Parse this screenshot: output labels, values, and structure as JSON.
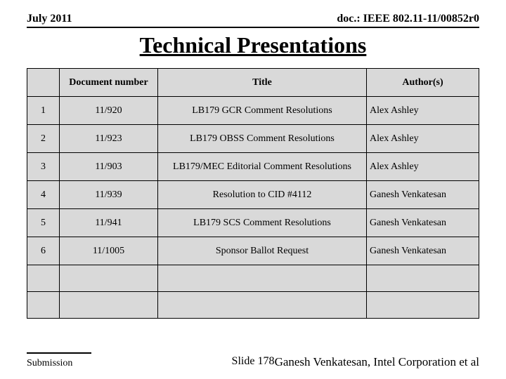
{
  "header": {
    "left": "July 2011",
    "right": "doc.: IEEE 802.11-11/00852r0"
  },
  "title": "Technical Presentations",
  "table": {
    "background_color": "#d9d9d9",
    "border_color": "#000000",
    "columns": [
      "",
      "Document number",
      "Title",
      "Author(s)"
    ],
    "rows": [
      {
        "idx": "1",
        "doc": "11/920",
        "title": "LB179 GCR Comment Resolutions",
        "author": "Alex Ashley"
      },
      {
        "idx": "2",
        "doc": "11/923",
        "title": "LB179 OBSS Comment Resolutions",
        "author": "Alex Ashley"
      },
      {
        "idx": "3",
        "doc": "11/903",
        "title": "LB179/MEC Editorial Comment Resolutions",
        "author": "Alex Ashley"
      },
      {
        "idx": "4",
        "doc": "11/939",
        "title": "Resolution to CID #4112",
        "author": "Ganesh Venkatesan"
      },
      {
        "idx": "5",
        "doc": "11/941",
        "title": "LB179 SCS Comment Resolutions",
        "author": "Ganesh Venkatesan"
      },
      {
        "idx": "6",
        "doc": "11/1005",
        "title": "Sponsor Ballot Request",
        "author": "Ganesh Venkatesan"
      },
      {
        "idx": "",
        "doc": "",
        "title": "",
        "author": ""
      },
      {
        "idx": "",
        "doc": "",
        "title": "",
        "author": ""
      }
    ]
  },
  "footer": {
    "submission": "Submission",
    "slide_label": "Slide 178",
    "author_line": "Ganesh Venkatesan, Intel Corporation et al"
  }
}
